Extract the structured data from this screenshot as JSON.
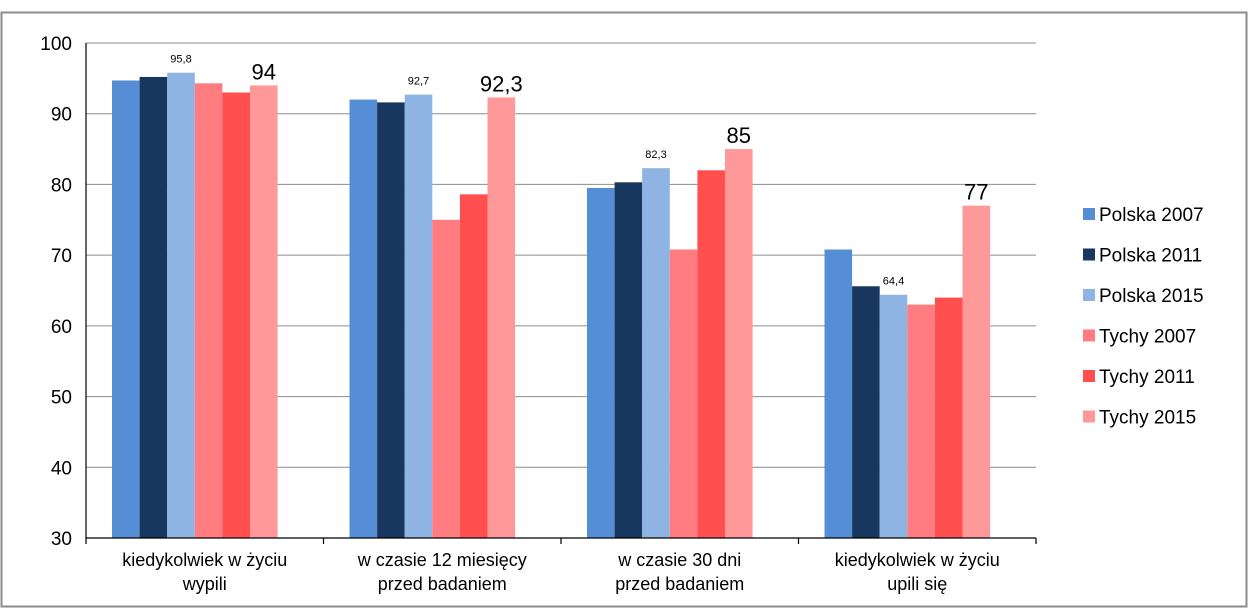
{
  "chart_data": {
    "type": "bar",
    "title": "",
    "xlabel": "",
    "ylabel": "",
    "ylim": [
      30,
      100
    ],
    "yticks": [
      "100",
      "90",
      "80",
      "70",
      "60",
      "50",
      "40",
      "30"
    ],
    "grid": true,
    "legend_position": "right",
    "categories": [
      [
        "kiedykolwiek w życiu",
        "wypili"
      ],
      [
        "w czasie 12 miesięcy",
        "przed badaniem"
      ],
      [
        "w czasie 30 dni",
        "przed badaniem"
      ],
      [
        "kiedykolwiek w życiu",
        "upili się"
      ]
    ],
    "series": [
      {
        "name": "Polska 2007",
        "color": "#558ED5",
        "values": [
          94.7,
          92.0,
          79.5,
          70.8
        ]
      },
      {
        "name": "Polska 2011",
        "color": "#17375E",
        "values": [
          95.2,
          91.6,
          80.3,
          65.6
        ]
      },
      {
        "name": "Polska 2015",
        "color": "#8EB4E3",
        "values": [
          95.8,
          92.7,
          82.3,
          64.4
        ]
      },
      {
        "name": "Tychy 2007",
        "color": "#FF7C80",
        "values": [
          94.3,
          75.0,
          70.8,
          63.0
        ]
      },
      {
        "name": "Tychy 2011",
        "color": "#FF4F4F",
        "values": [
          93.0,
          78.6,
          82.0,
          64.0
        ]
      },
      {
        "name": "Tychy 2015",
        "color": "#FF9999",
        "values": [
          94.0,
          92.3,
          85.0,
          77.0
        ]
      }
    ],
    "data_labels": [
      {
        "series": 2,
        "category": 0,
        "text": "95,8",
        "size": "small"
      },
      {
        "series": 5,
        "category": 0,
        "text": "94",
        "size": "big"
      },
      {
        "series": 2,
        "category": 1,
        "text": "92,7",
        "size": "small"
      },
      {
        "series": 5,
        "category": 1,
        "text": "92,3",
        "size": "big"
      },
      {
        "series": 2,
        "category": 2,
        "text": "82,3",
        "size": "small"
      },
      {
        "series": 5,
        "category": 2,
        "text": "85",
        "size": "big"
      },
      {
        "series": 2,
        "category": 3,
        "text": "64,4",
        "size": "small"
      },
      {
        "series": 5,
        "category": 3,
        "text": "77",
        "size": "big"
      }
    ]
  }
}
